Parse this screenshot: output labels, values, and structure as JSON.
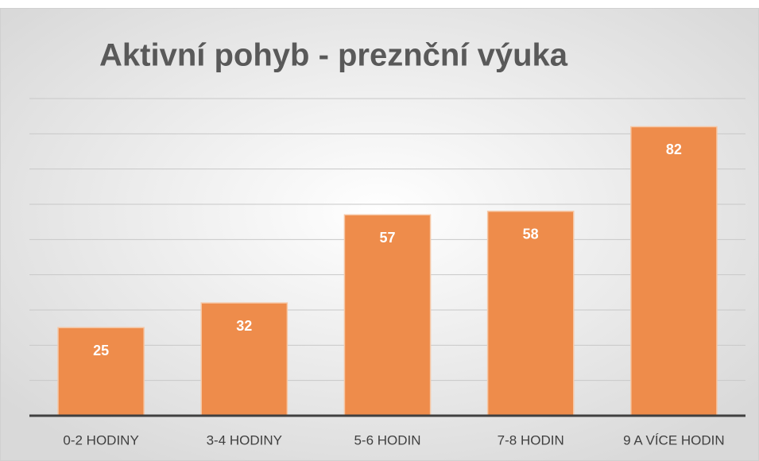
{
  "chart_data": {
    "type": "bar",
    "title": "Aktivní pohyb - preznční výuka",
    "categories": [
      "0-2 HODINY",
      "3-4 HODINY",
      "5-6 HODIN",
      "7-8 HODIN",
      "9 A VÍCE HODIN"
    ],
    "values": [
      25,
      32,
      57,
      58,
      82
    ],
    "color": "#ee8c4b",
    "ylim": [
      0,
      90
    ],
    "yticks": [
      0,
      10,
      20,
      30,
      40,
      50,
      60,
      70,
      80,
      90
    ],
    "grid": true
  }
}
